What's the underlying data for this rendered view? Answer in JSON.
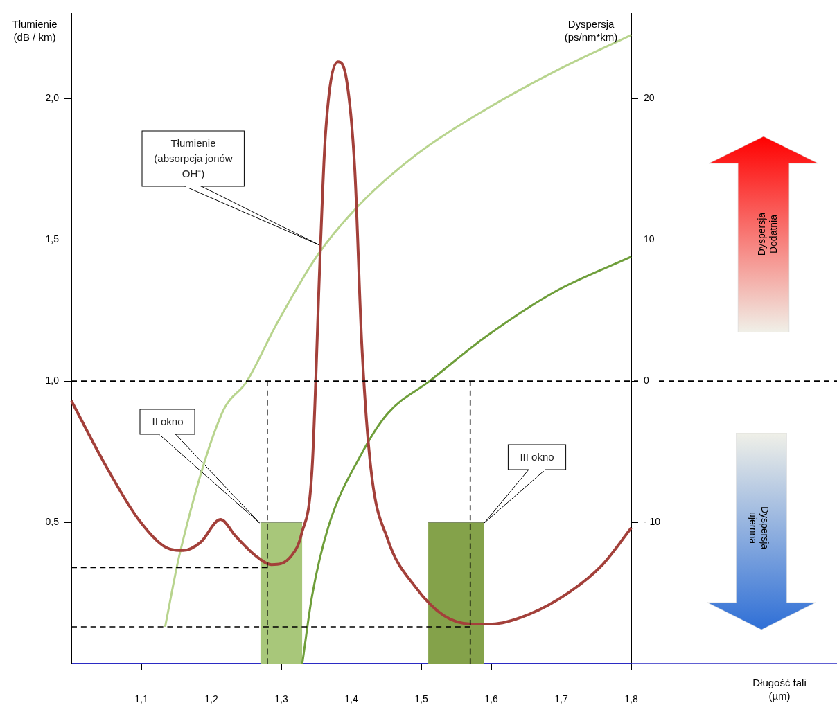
{
  "chart_data": {
    "type": "line",
    "ylabel": "Tłumienie\n(dB / km)",
    "y2label": "Dyspersja\n(ps/nm*km)",
    "xlim": [
      1.0,
      1.8
    ],
    "xticks": [
      {
        "value": 1.1,
        "label": "1,1"
      },
      {
        "value": 1.2,
        "label": "1,2"
      },
      {
        "value": 1.3,
        "label": "1,3"
      },
      {
        "value": 1.4,
        "label": "1,4"
      },
      {
        "value": 1.5,
        "label": "1,5"
      },
      {
        "value": 1.6,
        "label": "1,6"
      },
      {
        "value": 1.7,
        "label": "1,7"
      },
      {
        "value": 1.8,
        "label": "1,8"
      }
    ],
    "ylim": [
      0,
      2.3
    ],
    "yticks": [
      {
        "value": 0.5,
        "label": "0,5"
      },
      {
        "value": 1.0,
        "label": "1,0"
      },
      {
        "value": 1.5,
        "label": "1,5"
      },
      {
        "value": 2.0,
        "label": "2,0"
      }
    ],
    "y2lim": [
      -20,
      26
    ],
    "y2ticks": [
      {
        "value": -10,
        "label": "- 10"
      },
      0,
      10,
      20
    ],
    "grid": false,
    "legend": false,
    "marker": "none",
    "ref_lines": [
      {
        "axis": "y",
        "value": 1.0,
        "color": "#000000",
        "line_style": "dashed"
      }
    ],
    "annotations": [
      {
        "text": "Tłumienie\n(absorpcja jonów\nOH⁻)",
        "x": 1.356,
        "y": 1.48
      },
      "II okno",
      "III okno",
      "Dyspersja\nDodatnia",
      "Dyspersja\nujemna",
      "Długość fali\n(µm)"
    ],
    "series": [
      {
        "type": "area",
        "color": "#a8c77a",
        "x": [
          1.27,
          1.33
        ],
        "values": [
          0.5,
          0.5
        ]
      },
      {
        "type": "area",
        "color": "#84a24a",
        "x": [
          1.51,
          1.59
        ],
        "values": [
          0.5,
          0.5
        ]
      },
      {
        "type": "line",
        "color": "#000000",
        "line_style": "dashed",
        "x": [
          1.28,
          1.28
        ],
        "values": [
          0,
          1.0
        ]
      },
      {
        "type": "line",
        "color": "#000000",
        "line_style": "dashed",
        "x": [
          1.57,
          1.57
        ],
        "values": [
          0,
          1.0
        ]
      },
      {
        "type": "line",
        "color": "#000000",
        "line_style": "dashed",
        "x": [
          1.0,
          1.28
        ],
        "values": [
          0.34,
          0.34
        ]
      },
      {
        "type": "line",
        "color": "#000000",
        "line_style": "dashed",
        "x": [
          1.0,
          1.57
        ],
        "values": [
          0.13,
          0.13
        ]
      },
      {
        "type": "line",
        "color": "#b8d48e",
        "axis": "y2",
        "x": [
          1.134,
          1.155,
          1.215,
          1.251,
          1.294,
          1.353,
          1.412,
          1.492,
          1.591,
          1.69,
          1.8
        ],
        "values": [
          -17.4,
          -12.2,
          -2.3,
          0,
          4.1,
          9.0,
          12.5,
          16.0,
          19.2,
          21.9,
          24.5
        ]
      },
      {
        "type": "line",
        "color": "#6e9e3a",
        "axis": "y2",
        "x": [
          1.33,
          1.344,
          1.368,
          1.413,
          1.452,
          1.512,
          1.591,
          1.69,
          1.8
        ],
        "values": [
          -20,
          -15.2,
          -10.2,
          -5.3,
          -2.3,
          0,
          3.1,
          6.3,
          8.8
        ]
      },
      {
        "type": "line",
        "color": "#a3403a",
        "x": [
          1.0,
          1.047,
          1.096,
          1.136,
          1.16,
          1.185,
          1.213,
          1.235,
          1.264,
          1.286,
          1.314,
          1.329,
          1.344,
          1.356,
          1.363,
          1.381,
          1.393,
          1.405,
          1.415,
          1.428,
          1.452,
          1.492,
          1.532,
          1.571,
          1.601,
          1.65,
          1.71,
          1.759,
          1.8
        ],
        "values": [
          0.93,
          0.71,
          0.51,
          0.41,
          0.4,
          0.43,
          0.51,
          0.45,
          0.38,
          0.35,
          0.38,
          0.46,
          0.69,
          1.48,
          1.87,
          2.13,
          2.07,
          1.75,
          1.13,
          0.69,
          0.44,
          0.27,
          0.17,
          0.14,
          0.14,
          0.17,
          0.25,
          0.35,
          0.48
        ]
      }
    ]
  }
}
